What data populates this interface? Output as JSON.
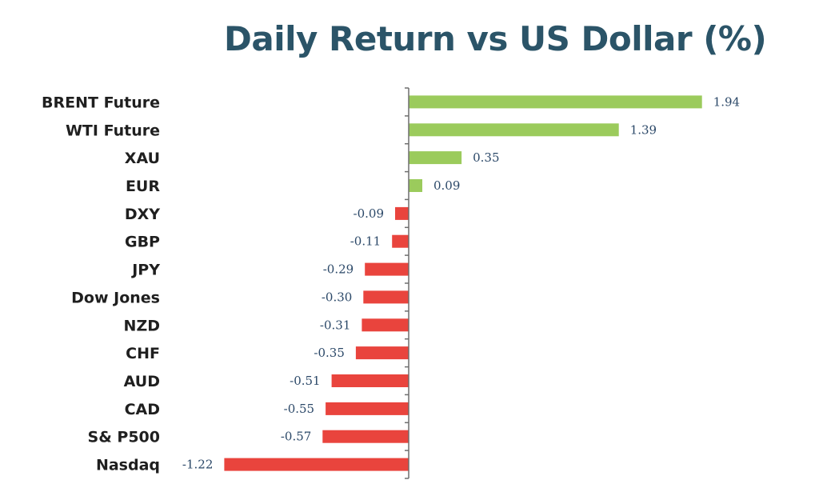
{
  "chart_data": {
    "type": "bar",
    "orientation": "horizontal",
    "title": "Daily Return vs US Dollar (%)",
    "categories": [
      "BRENT Future",
      "WTI Future",
      "XAU",
      "EUR",
      "DXY",
      "GBP",
      "JPY",
      "Dow Jones",
      "NZD",
      "CHF",
      "AUD",
      "CAD",
      "S& P500",
      "Nasdaq"
    ],
    "values": [
      1.94,
      1.39,
      0.35,
      0.09,
      -0.09,
      -0.11,
      -0.29,
      -0.3,
      -0.31,
      -0.35,
      -0.51,
      -0.55,
      -0.57,
      -1.22
    ],
    "value_labels": [
      "1.94",
      "1.39",
      "0.35",
      "0.09",
      "-0.09",
      "-0.11",
      "-0.29",
      "-0.30",
      "-0.31",
      "-0.35",
      "-0.51",
      "-0.55",
      "-0.57",
      "-1.22"
    ],
    "xlabel": "",
    "ylabel": "",
    "grid": false,
    "legend": "none",
    "colors": {
      "positive": "#9bcb5c",
      "negative": "#e9443d",
      "title": "#2b5468",
      "axis": "#6f6f6f",
      "value_text": "#2b4868"
    }
  }
}
